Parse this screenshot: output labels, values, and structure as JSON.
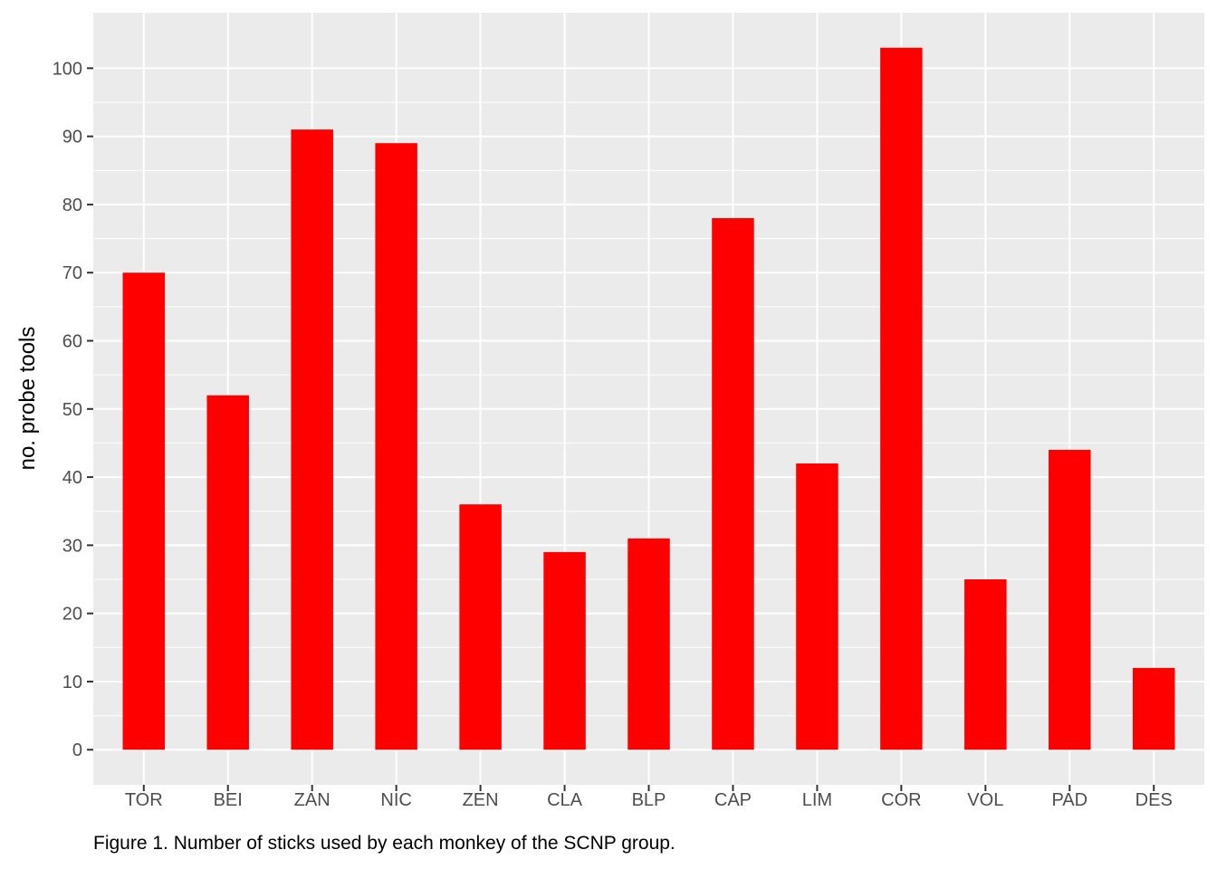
{
  "chart_data": {
    "type": "bar",
    "categories": [
      "TOR",
      "BEI",
      "ZAN",
      "NIC",
      "ZEN",
      "CLA",
      "BLP",
      "CAP",
      "LIM",
      "COR",
      "VOL",
      "PAD",
      "DES"
    ],
    "values": [
      70,
      52,
      91,
      89,
      36,
      29,
      31,
      78,
      42,
      103,
      25,
      44,
      12
    ],
    "xlabel": "",
    "ylabel": "no. probe tools",
    "ylim": [
      0,
      104
    ],
    "yticks": [
      0,
      10,
      20,
      30,
      40,
      50,
      60,
      70,
      80,
      90,
      100
    ],
    "grid": true,
    "legend": "none",
    "colors": {
      "bar": "#ff0000",
      "panel": "#ebebeb",
      "grid": "#ffffff"
    }
  },
  "caption": "Figure 1. Number of sticks used by each monkey of the SCNP group."
}
